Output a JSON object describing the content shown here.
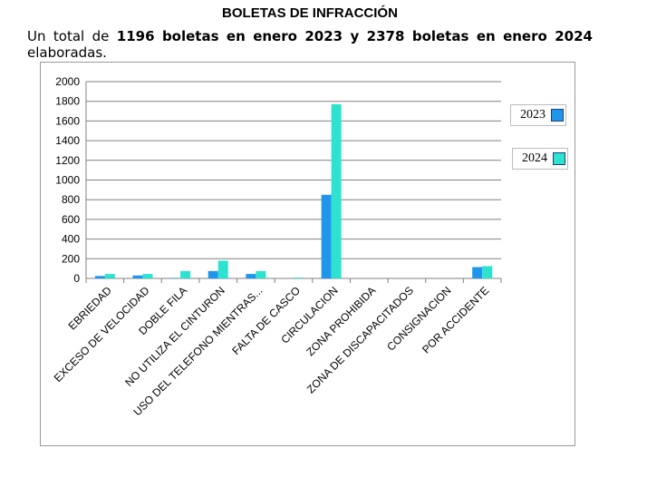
{
  "title": "BOLETAS DE INFRACCIÓN",
  "intro": {
    "w1": "Un",
    "w2": "total",
    "w3": "de",
    "n2023": "1196",
    "w5": "boletas",
    "w6": "en",
    "w7": "enero",
    "y2023": "2023",
    "w9": "y",
    "n2024": "2378",
    "w11": "boletas",
    "w12": "en",
    "w13": "enero",
    "y2024": "2024",
    "line2": "elaboradas."
  },
  "chart_data": {
    "type": "bar",
    "categories": [
      "EBRIEDAD",
      "EXCESO DE VELOCIDAD",
      "DOBLE FILA",
      "NO UTILIZA EL CINTURON",
      "USO DEL TELEFONO MIENTRAS...",
      "FALTA DE CASCO",
      "CIRCULACION",
      "ZONA PROHIBIDA",
      "ZONA DE DISCAPACITADOS",
      "CONSIGNACION",
      "POR ACCIDENTE"
    ],
    "series": [
      {
        "name": "2023",
        "values": [
          25,
          30,
          5,
          75,
          45,
          0,
          850,
          0,
          0,
          0,
          115
        ],
        "color": "#1f96ec"
      },
      {
        "name": "2024",
        "values": [
          45,
          45,
          75,
          180,
          75,
          8,
          1770,
          0,
          0,
          0,
          125
        ],
        "color": "#2de3cf"
      }
    ],
    "ylim": [
      0,
      2000
    ],
    "yticks": [
      0,
      200,
      400,
      600,
      800,
      1000,
      1200,
      1400,
      1600,
      1800,
      2000
    ],
    "grid": true,
    "legend_position": "right"
  }
}
